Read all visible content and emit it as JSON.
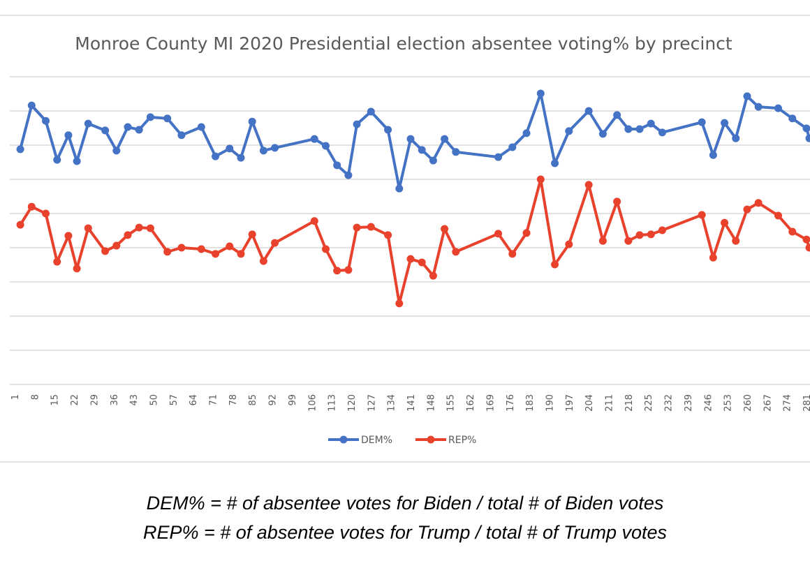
{
  "chart_data": {
    "type": "line",
    "title": "Monroe County MI 2020 Presidential election absentee voting% by precinct",
    "xlabel": "",
    "ylabel": "",
    "x_tick_labels": [
      "1",
      "8",
      "15",
      "22",
      "29",
      "36",
      "43",
      "50",
      "57",
      "64",
      "71",
      "78",
      "85",
      "92",
      "99",
      "106",
      "113",
      "120",
      "127",
      "134",
      "141",
      "148",
      "155",
      "162",
      "169",
      "176",
      "183",
      "190",
      "197",
      "204",
      "211",
      "218",
      "225",
      "232",
      "239",
      "246",
      "253",
      "260",
      "267",
      "274",
      "281"
    ],
    "ylim": [
      0,
      90
    ],
    "y_gridline_step": 10,
    "y_tick_labels_visible": false,
    "grid": true,
    "legend_position": "bottom",
    "x": [
      3,
      7,
      12,
      16,
      20,
      23,
      27,
      33,
      37,
      41,
      45,
      49,
      55,
      60,
      67,
      72,
      77,
      81,
      85,
      89,
      93,
      107,
      111,
      115,
      119,
      122,
      127,
      133,
      137,
      141,
      145,
      149,
      153,
      157,
      172,
      177,
      182,
      187,
      192,
      197,
      204,
      209,
      214,
      218,
      222,
      226,
      230,
      244,
      248,
      252,
      256,
      260,
      264,
      271,
      276,
      281,
      282
    ],
    "series": [
      {
        "name": "DEM%",
        "color": "#4472C4",
        "values": [
          68.8,
          81.6,
          77.1,
          65.7,
          72.9,
          65.3,
          76.3,
          74.3,
          68.4,
          75.3,
          74.5,
          78.2,
          77.8,
          72.9,
          75.3,
          66.7,
          69.0,
          66.3,
          76.9,
          68.4,
          69.2,
          71.8,
          69.8,
          64.1,
          61.2,
          76.1,
          79.8,
          74.5,
          57.3,
          71.8,
          68.6,
          65.5,
          71.8,
          68.0,
          66.5,
          69.4,
          73.5,
          85.1,
          64.7,
          74.1,
          80.0,
          73.3,
          78.8,
          74.7,
          74.7,
          76.3,
          73.7,
          76.7,
          67.1,
          76.5,
          72.0,
          84.3,
          81.2,
          80.8,
          77.8,
          74.9,
          72.0
        ]
      },
      {
        "name": "REP%",
        "color": "#E8412C",
        "values": [
          46.7,
          52.0,
          50.0,
          35.9,
          43.5,
          33.9,
          45.7,
          39.0,
          40.6,
          43.7,
          45.9,
          45.7,
          38.8,
          40.0,
          39.6,
          38.2,
          40.4,
          38.2,
          43.9,
          36.1,
          41.4,
          47.8,
          39.6,
          33.3,
          33.5,
          45.9,
          46.1,
          43.7,
          23.7,
          36.7,
          35.7,
          31.8,
          45.5,
          38.8,
          44.1,
          38.2,
          44.3,
          60.0,
          35.1,
          41.0,
          58.4,
          42.0,
          53.5,
          42.0,
          43.7,
          43.9,
          45.1,
          49.6,
          37.1,
          47.3,
          42.0,
          51.2,
          53.1,
          49.4,
          44.7,
          42.4,
          40.0
        ]
      }
    ]
  },
  "captions": [
    "DEM% = # of absentee votes for Biden / total # of Biden votes",
    "REP% = # of absentee votes for Trump / total # of Trump votes"
  ]
}
